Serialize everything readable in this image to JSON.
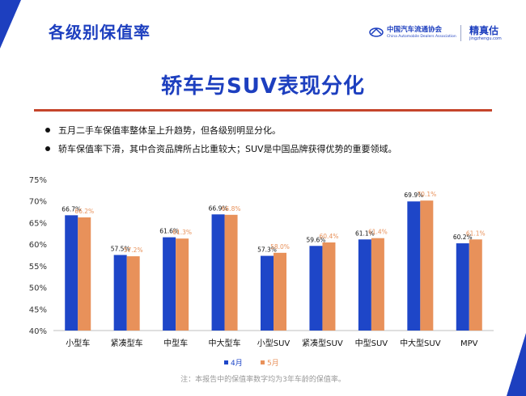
{
  "header": {
    "section_title": "各级别保值率",
    "main_title": "轿车与SUV表现分化",
    "logos": {
      "cada_cn": "中国汽车流通协会",
      "cada_en": "China Automobile Dealers Association",
      "jzg_cn": "精真估",
      "jzg_url": "jingzhengu.com"
    }
  },
  "bullets": [
    "五月二手车保值率整体呈上升趋势，但各级别明显分化。",
    "轿车保值率下滑，其中合资品牌所占比重较大；SUV是中国品牌获得优势的重要领域。"
  ],
  "footnote": "注：本报告中的保值率数字均为3年车龄的保值率。",
  "colors": {
    "brand_blue": "#1d3fbf",
    "accent_red": "#c5452b",
    "series_april": "#1e46c8",
    "series_may": "#e8915a"
  },
  "chart_data": {
    "type": "bar",
    "categories": [
      "小型车",
      "紧凑型车",
      "中型车",
      "中大型车",
      "小型SUV",
      "紧凑型SUV",
      "中型SUV",
      "中大型SUV",
      "MPV"
    ],
    "series": [
      {
        "name": "4月",
        "values": [
          66.7,
          57.5,
          61.6,
          66.9,
          57.3,
          59.6,
          61.1,
          69.9,
          60.2
        ],
        "labels": [
          "66.7%",
          "57.5%",
          "61.6%",
          "66.9%",
          "57.3%",
          "59.6%",
          "61.1%",
          "69.9%",
          "60.2%"
        ]
      },
      {
        "name": "5月",
        "values": [
          66.2,
          57.2,
          61.3,
          66.8,
          58.0,
          60.4,
          61.4,
          70.1,
          61.1
        ],
        "labels": [
          "66.2%",
          "57.2%",
          "61.3%",
          "66.8%",
          "58.0%",
          "60.4%",
          "61.4%",
          "70.1%",
          "61.1%"
        ]
      }
    ],
    "y_ticks": [
      "40%",
      "45%",
      "50%",
      "55%",
      "60%",
      "65%",
      "70%",
      "75%"
    ],
    "ylim": [
      40,
      75
    ],
    "grid": false,
    "legend_position": "bottom"
  }
}
